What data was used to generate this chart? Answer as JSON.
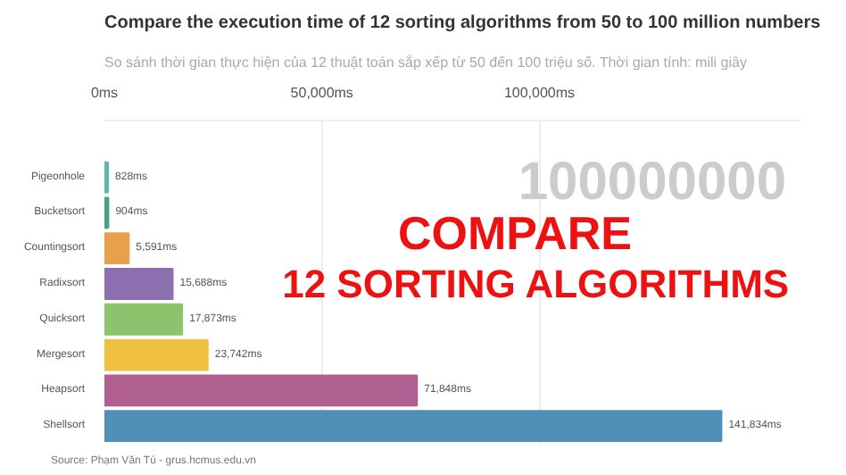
{
  "chart_data": {
    "type": "bar",
    "orientation": "horizontal",
    "title": "Compare the execution time of 12 sorting algorithms from 50 to 100 million numbers",
    "subtitle": "So sánh thời gian thực hiện của 12 thuật toán sắp xếp từ 50 đến 100 triệu số. Thời gian tính: mili giây",
    "categories": [
      "Pigeonhole",
      "Bucketsort",
      "Countingsort",
      "Radixsort",
      "Quicksort",
      "Mergesort",
      "Heapsort",
      "Shellsort"
    ],
    "values": [
      828,
      904,
      5591,
      15688,
      17873,
      23742,
      71848,
      141834
    ],
    "value_labels": [
      "828ms",
      "904ms",
      "5,591ms",
      "15,688ms",
      "17,873ms",
      "23,742ms",
      "71,848ms",
      "141,834ms"
    ],
    "colors": [
      "#5fb8b0",
      "#4aa08a",
      "#e8a04a",
      "#8c6fae",
      "#8cc46e",
      "#f0c040",
      "#b06090",
      "#5090b8"
    ],
    "xlim": [
      0,
      160000
    ],
    "xticks": [
      {
        "value": 0,
        "label": "0ms"
      },
      {
        "value": 50000,
        "label": "50,000ms"
      },
      {
        "value": 100000,
        "label": "100,000ms"
      }
    ],
    "grid": "x",
    "annotations": [
      "100000000",
      "COMPARE",
      "12 SORTING ALGORITHMS",
      "Source: Phạm Văn Tú - grus.hcmus.edu.vn"
    ]
  }
}
